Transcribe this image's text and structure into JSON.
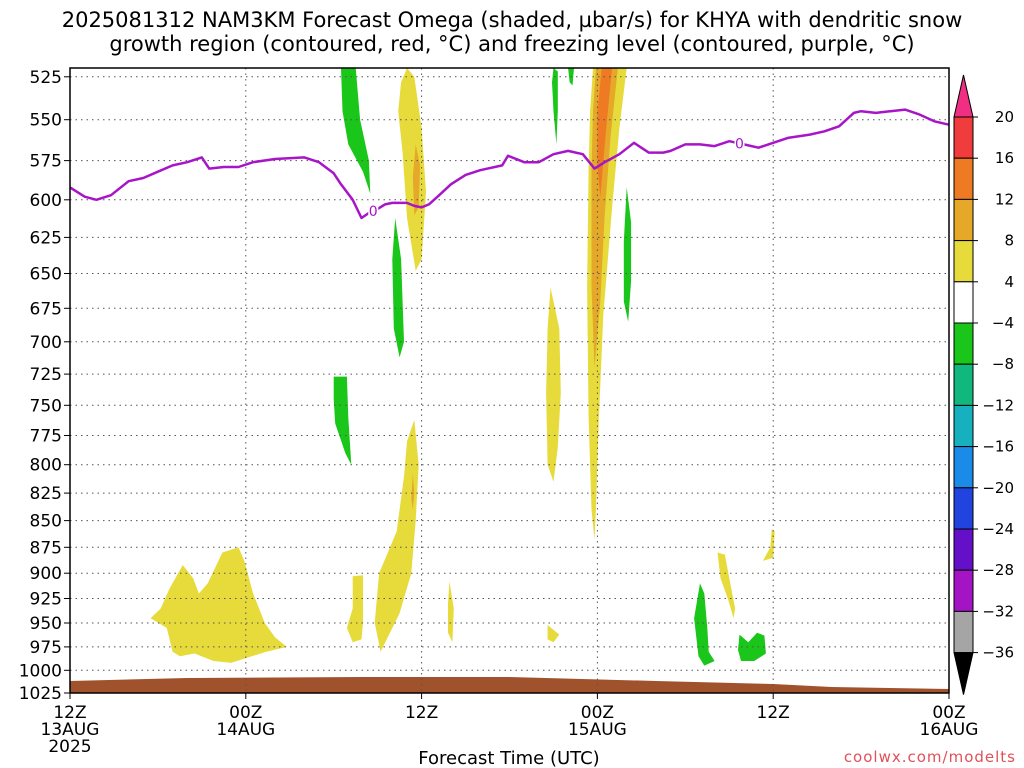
{
  "chart_data": {
    "type": "heatmap",
    "title_lines": [
      "2025081312 NAM3KM Forecast Omega (shaded, µbar/s) for KHYA with dendritic snow",
      "growth region (contoured, red, °C) and freezing level (contoured, purple, °C)"
    ],
    "xlabel": "Forecast Time (UTC)",
    "credit": "coolwx.com/modelts",
    "x_range_hours": [
      0,
      60
    ],
    "y_range_mb": [
      1025,
      520
    ],
    "y_ticks": [
      525,
      550,
      575,
      600,
      625,
      650,
      675,
      700,
      725,
      750,
      775,
      800,
      825,
      850,
      875,
      900,
      925,
      950,
      975,
      1000,
      1025
    ],
    "x_ticks": [
      {
        "hour": 0,
        "lines": [
          "12Z",
          "13AUG",
          "2025"
        ]
      },
      {
        "hour": 12,
        "lines": [
          "00Z",
          "14AUG"
        ]
      },
      {
        "hour": 24,
        "lines": [
          "12Z"
        ]
      },
      {
        "hour": 36,
        "lines": [
          "00Z",
          "15AUG"
        ]
      },
      {
        "hour": 48,
        "lines": [
          "12Z"
        ]
      },
      {
        "hour": 60,
        "lines": [
          "00Z",
          "16AUG"
        ]
      }
    ],
    "grid": true,
    "colorbar": {
      "labels": [
        "20",
        "16",
        "12",
        "8",
        "4",
        "−4",
        "−8",
        "−12",
        "−16",
        "−20",
        "−24",
        "−28",
        "−32",
        "−36"
      ],
      "colors": [
        "#f02f82",
        "#f03c3c",
        "#ee7a24",
        "#e5a828",
        "#e7db3c",
        "#ffffff",
        "#19c619",
        "#11b87e",
        "#16b0bf",
        "#1a8be8",
        "#2244de",
        "#6410c8",
        "#a514c4",
        "#a5a5a5",
        "#000000"
      ]
    },
    "freezing_level": {
      "label": "0",
      "color": "#a815c9",
      "points": [
        [
          0,
          592
        ],
        [
          1,
          598
        ],
        [
          1.8,
          600
        ],
        [
          2.8,
          597
        ],
        [
          4,
          588
        ],
        [
          5,
          586
        ],
        [
          6,
          582
        ],
        [
          7,
          578
        ],
        [
          8,
          576
        ],
        [
          9,
          573
        ],
        [
          9.5,
          580
        ],
        [
          10.5,
          579
        ],
        [
          11.5,
          579
        ],
        [
          12.5,
          576
        ],
        [
          14,
          574
        ],
        [
          16,
          573
        ],
        [
          17,
          576
        ],
        [
          18,
          583
        ],
        [
          18.5,
          590
        ],
        [
          19.3,
          600
        ],
        [
          19.9,
          612
        ],
        [
          20.5,
          608
        ],
        [
          21,
          606
        ],
        [
          21.5,
          603
        ],
        [
          22,
          602
        ],
        [
          22.5,
          602
        ],
        [
          23,
          602
        ],
        [
          23.5,
          604
        ],
        [
          24,
          605
        ],
        [
          24.5,
          603
        ],
        [
          25.2,
          597
        ],
        [
          26,
          590
        ],
        [
          27,
          584
        ],
        [
          28,
          581
        ],
        [
          29.5,
          578
        ],
        [
          29.9,
          572
        ],
        [
          31,
          576
        ],
        [
          32,
          576
        ],
        [
          33,
          571
        ],
        [
          34,
          569
        ],
        [
          35,
          571
        ],
        [
          35.8,
          580
        ],
        [
          36.5,
          576
        ],
        [
          37.5,
          571
        ],
        [
          38.5,
          564
        ],
        [
          39.5,
          570
        ],
        [
          40.5,
          570
        ],
        [
          41,
          569
        ],
        [
          42,
          565
        ],
        [
          43,
          565
        ],
        [
          44,
          566
        ],
        [
          45,
          563
        ],
        [
          46,
          565
        ],
        [
          47,
          567
        ],
        [
          48,
          564
        ],
        [
          49,
          561
        ],
        [
          50.5,
          559
        ],
        [
          51.5,
          557
        ],
        [
          52.5,
          554
        ],
        [
          53.5,
          546
        ],
        [
          54,
          545
        ],
        [
          55,
          546
        ],
        [
          56,
          545
        ],
        [
          57,
          544
        ],
        [
          58,
          547
        ],
        [
          59,
          551
        ],
        [
          60,
          553
        ]
      ],
      "label_hours": [
        20.7,
        45.7
      ]
    },
    "ground_color": "#a0522d",
    "shaded_regions": [
      {
        "level": "-8 to -4",
        "color": "#19c619",
        "points": [
          [
            18.5,
            520
          ],
          [
            19.5,
            520
          ],
          [
            19.8,
            550
          ],
          [
            20.4,
            575
          ],
          [
            20.5,
            596
          ],
          [
            20.0,
            582
          ],
          [
            19.0,
            565
          ],
          [
            18.6,
            545
          ]
        ]
      },
      {
        "level": "4 to 8",
        "color": "#e7db3c",
        "points": [
          [
            23.0,
            520
          ],
          [
            23.5,
            525
          ],
          [
            24.0,
            555
          ],
          [
            24.3,
            595
          ],
          [
            24.0,
            640
          ],
          [
            23.6,
            648
          ],
          [
            23.0,
            612
          ],
          [
            22.7,
            570
          ],
          [
            22.4,
            545
          ],
          [
            22.6,
            528
          ]
        ]
      },
      {
        "level": "8 to 12",
        "color": "#e5a828",
        "points": [
          [
            23.6,
            565
          ],
          [
            23.9,
            578
          ],
          [
            23.8,
            605
          ],
          [
            23.5,
            610
          ],
          [
            23.4,
            585
          ]
        ]
      },
      {
        "level": "-8 to -4",
        "color": "#19c619",
        "points": [
          [
            22.2,
            612
          ],
          [
            22.6,
            640
          ],
          [
            22.8,
            700
          ],
          [
            22.5,
            712
          ],
          [
            22.1,
            690
          ],
          [
            22.0,
            640
          ]
        ]
      },
      {
        "level": "-8 to -4",
        "color": "#19c619",
        "points": [
          [
            33.0,
            520
          ],
          [
            33.3,
            522
          ],
          [
            33.3,
            545
          ],
          [
            33.2,
            565
          ],
          [
            33.0,
            545
          ],
          [
            32.9,
            528
          ]
        ]
      },
      {
        "level": "-8 to -4",
        "color": "#19c619",
        "points": [
          [
            34.0,
            520
          ],
          [
            34.4,
            520
          ],
          [
            34.3,
            530
          ],
          [
            34.1,
            528
          ]
        ]
      },
      {
        "level": "4 to 8",
        "color": "#e7db3c",
        "points": [
          [
            35.7,
            520
          ],
          [
            38.0,
            520
          ],
          [
            37.5,
            555
          ],
          [
            37.0,
            605
          ],
          [
            36.4,
            680
          ],
          [
            36.1,
            760
          ],
          [
            35.9,
            840
          ],
          [
            35.8,
            868
          ],
          [
            35.6,
            840
          ],
          [
            35.4,
            760
          ],
          [
            35.3,
            660
          ],
          [
            35.4,
            580
          ],
          [
            35.5,
            545
          ]
        ]
      },
      {
        "level": "8 to 12",
        "color": "#e5a828",
        "points": [
          [
            35.9,
            520
          ],
          [
            37.4,
            520
          ],
          [
            36.9,
            560
          ],
          [
            36.5,
            610
          ],
          [
            36.2,
            670
          ],
          [
            35.8,
            720
          ],
          [
            35.6,
            660
          ],
          [
            35.6,
            580
          ],
          [
            35.7,
            545
          ]
        ]
      },
      {
        "level": "12 to 16",
        "color": "#ee7a24",
        "points": [
          [
            36.3,
            520
          ],
          [
            37.0,
            520
          ],
          [
            36.6,
            555
          ],
          [
            36.2,
            598
          ],
          [
            36.0,
            578
          ],
          [
            36.0,
            545
          ]
        ]
      },
      {
        "level": "-8 to -4",
        "color": "#19c619",
        "points": [
          [
            38.0,
            592
          ],
          [
            38.3,
            615
          ],
          [
            38.3,
            655
          ],
          [
            38.1,
            685
          ],
          [
            37.8,
            670
          ],
          [
            37.8,
            628
          ]
        ]
      },
      {
        "level": "4 to 8",
        "color": "#e7db3c",
        "points": [
          [
            32.8,
            660
          ],
          [
            33.4,
            690
          ],
          [
            33.5,
            740
          ],
          [
            33.3,
            785
          ],
          [
            33.0,
            815
          ],
          [
            32.6,
            800
          ],
          [
            32.5,
            740
          ],
          [
            32.6,
            690
          ]
        ]
      },
      {
        "level": "4 to 8",
        "color": "#e7db3c",
        "points": [
          [
            23.5,
            762
          ],
          [
            23.8,
            800
          ],
          [
            23.6,
            850
          ],
          [
            23.3,
            900
          ],
          [
            22.5,
            940
          ],
          [
            21.2,
            980
          ],
          [
            20.8,
            950
          ],
          [
            21.1,
            900
          ],
          [
            22.3,
            860
          ],
          [
            22.8,
            810
          ],
          [
            23.0,
            780
          ]
        ]
      },
      {
        "level": "8 to 12",
        "color": "#e5a828",
        "points": [
          [
            23.4,
            808
          ],
          [
            23.5,
            825
          ],
          [
            23.4,
            840
          ],
          [
            23.3,
            830
          ]
        ]
      },
      {
        "level": "-8 to -4",
        "color": "#19c619",
        "points": [
          [
            18.0,
            727
          ],
          [
            18.9,
            727
          ],
          [
            19.0,
            760
          ],
          [
            19.2,
            800
          ],
          [
            18.8,
            790
          ],
          [
            18.1,
            765
          ],
          [
            18.0,
            745
          ]
        ]
      },
      {
        "level": "4 to 8",
        "color": "#e7db3c",
        "points": [
          [
            19.3,
            903
          ],
          [
            20.0,
            902
          ],
          [
            20.0,
            950
          ],
          [
            19.9,
            967
          ],
          [
            19.3,
            970
          ],
          [
            18.9,
            955
          ],
          [
            19.3,
            935
          ]
        ]
      },
      {
        "level": "4 to 8",
        "color": "#e7db3c",
        "points": [
          [
            25.9,
            908
          ],
          [
            26.2,
            935
          ],
          [
            26.1,
            970
          ],
          [
            25.8,
            960
          ],
          [
            25.8,
            930
          ]
        ]
      },
      {
        "level": "4 to 8",
        "color": "#e7db3c",
        "points": [
          [
            5.5,
            945
          ],
          [
            6.2,
            935
          ],
          [
            6.8,
            915
          ],
          [
            7.7,
            892
          ],
          [
            8.4,
            905
          ],
          [
            8.8,
            920
          ],
          [
            9.4,
            910
          ],
          [
            10.4,
            880
          ],
          [
            11.5,
            875
          ],
          [
            11.9,
            888
          ],
          [
            12.5,
            920
          ],
          [
            13.3,
            950
          ],
          [
            14.0,
            965
          ],
          [
            14.8,
            975
          ],
          [
            13.4,
            980
          ],
          [
            12.4,
            985
          ],
          [
            11.0,
            992
          ],
          [
            9.8,
            990
          ],
          [
            8.5,
            982
          ],
          [
            7.5,
            985
          ],
          [
            7.0,
            980
          ],
          [
            6.6,
            955
          ]
        ]
      },
      {
        "level": "4 to 8",
        "color": "#e7db3c",
        "points": [
          [
            32.6,
            952
          ],
          [
            33.4,
            962
          ],
          [
            33.0,
            970
          ],
          [
            32.6,
            967
          ]
        ]
      },
      {
        "level": "-8 to -4",
        "color": "#19c619",
        "points": [
          [
            43.0,
            910
          ],
          [
            43.3,
            920
          ],
          [
            43.5,
            955
          ],
          [
            43.6,
            980
          ],
          [
            44.0,
            990
          ],
          [
            43.3,
            995
          ],
          [
            42.9,
            985
          ],
          [
            42.6,
            945
          ]
        ]
      },
      {
        "level": "4 to 8",
        "color": "#e7db3c",
        "points": [
          [
            44.2,
            880
          ],
          [
            44.7,
            882
          ],
          [
            45.0,
            905
          ],
          [
            45.4,
            935
          ],
          [
            45.3,
            945
          ],
          [
            44.9,
            925
          ],
          [
            44.4,
            905
          ]
        ]
      },
      {
        "level": "4 to 8",
        "color": "#e7db3c",
        "points": [
          [
            47.9,
            858
          ],
          [
            48.1,
            860
          ],
          [
            48.0,
            885
          ],
          [
            47.3,
            888
          ],
          [
            47.8,
            875
          ]
        ]
      },
      {
        "level": "-8 to -4",
        "color": "#19c619",
        "points": [
          [
            45.7,
            962
          ],
          [
            46.3,
            970
          ],
          [
            46.9,
            960
          ],
          [
            47.4,
            963
          ],
          [
            47.5,
            982
          ],
          [
            46.7,
            990
          ],
          [
            45.8,
            990
          ],
          [
            45.6,
            978
          ]
        ]
      }
    ]
  }
}
